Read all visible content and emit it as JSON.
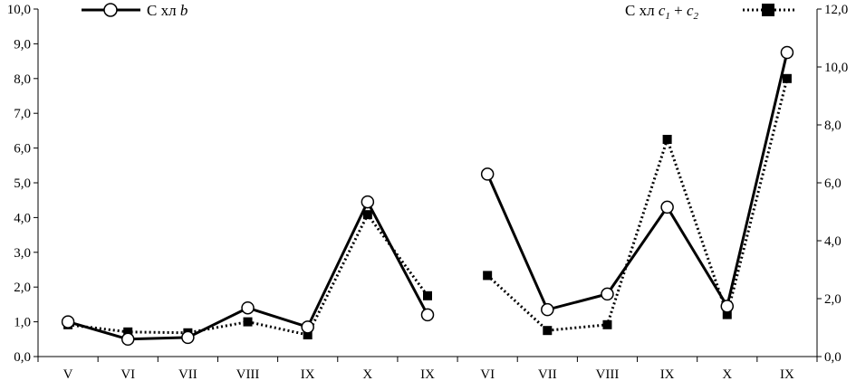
{
  "chart_data": {
    "type": "line",
    "categories": [
      "V",
      "VI",
      "VII",
      "VIII",
      "IX",
      "X",
      "IX",
      "VI",
      "VII",
      "VIII",
      "IX",
      "X",
      "IX"
    ],
    "y_left": {
      "min": 0,
      "max": 10,
      "step": 1,
      "tick_labels": [
        "0,0",
        "1,0",
        "2,0",
        "3,0",
        "4,0",
        "5,0",
        "6,0",
        "7,0",
        "8,0",
        "9,0",
        "10,0"
      ]
    },
    "y_right": {
      "min": 0,
      "max": 12,
      "step": 2,
      "tick_labels": [
        "0,0",
        "2,0",
        "4,0",
        "6,0",
        "8,0",
        "10,0",
        "12,0"
      ]
    },
    "grid": false,
    "series": [
      {
        "name": "С хл b",
        "axis": "left",
        "style": "solid",
        "marker": "open-circle",
        "color": "#000000",
        "segments": [
          {
            "x_index": [
              0,
              1,
              2,
              3,
              4,
              5,
              6
            ],
            "values": [
              1.0,
              0.5,
              0.55,
              1.4,
              0.85,
              4.45,
              1.2
            ]
          },
          {
            "x_index": [
              7,
              8,
              9,
              10,
              11,
              12
            ],
            "values": [
              5.25,
              1.35,
              1.8,
              4.3,
              1.45,
              8.75
            ]
          }
        ]
      },
      {
        "name": "С хл c1 + c2",
        "axis": "right",
        "style": "dotted",
        "marker": "filled-square",
        "color": "#000000",
        "segments": [
          {
            "x_index": [
              0,
              1,
              2,
              3,
              4,
              5,
              6
            ],
            "values": [
              1.1,
              0.85,
              0.82,
              1.2,
              0.75,
              4.9,
              2.1
            ]
          },
          {
            "x_index": [
              7,
              8,
              9,
              10,
              11,
              12
            ],
            "values": [
              2.8,
              0.9,
              1.1,
              7.5,
              1.45,
              9.6
            ]
          }
        ]
      }
    ],
    "legend": [
      {
        "series": 0,
        "position": "top-left",
        "text_main": "С хл ",
        "text_var": "b",
        "text_sub1": "",
        "text_plus": "",
        "text_var2": "",
        "text_sub2": ""
      },
      {
        "series": 1,
        "position": "top-right",
        "text_main": "С хл ",
        "text_var": "c",
        "text_sub1": "1",
        "text_plus": " + ",
        "text_var2": "c",
        "text_sub2": "2"
      }
    ]
  }
}
